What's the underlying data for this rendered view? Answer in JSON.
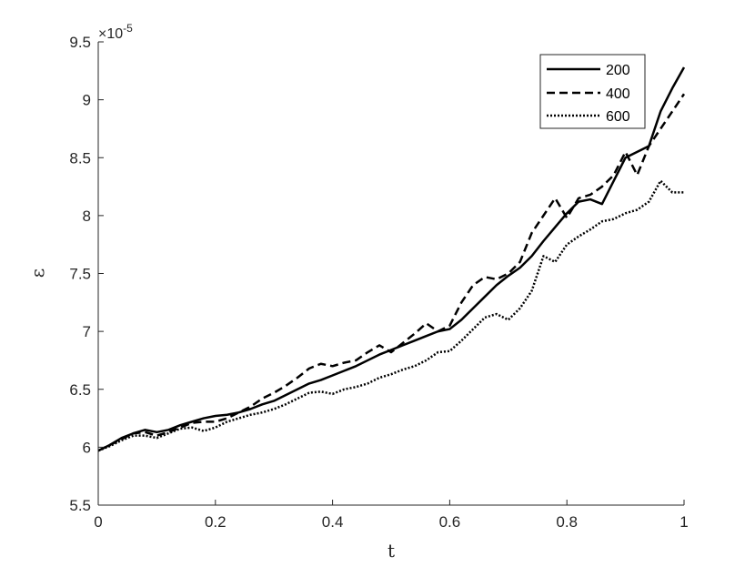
{
  "chart_data": {
    "type": "line",
    "xlabel": "t",
    "ylabel": "ε",
    "y_exponent_base": "×10",
    "y_exponent_power": "-5",
    "xlim": [
      0,
      1
    ],
    "ylim": [
      5.5,
      9.5
    ],
    "xticks": [
      0,
      0.2,
      0.4,
      0.6,
      0.8,
      1
    ],
    "xtick_labels": [
      "0",
      "0.2",
      "0.4",
      "0.6",
      "0.8",
      "1"
    ],
    "yticks": [
      5.5,
      6,
      6.5,
      7,
      7.5,
      8,
      8.5,
      9,
      9.5
    ],
    "ytick_labels": [
      "5.5",
      "6",
      "6.5",
      "7",
      "7.5",
      "8",
      "8.5",
      "9",
      "9.5"
    ],
    "grid": false,
    "legend_position": "top-right",
    "series": [
      {
        "name": "200",
        "style": "solid",
        "color": "#000000",
        "x": [
          0,
          0.02,
          0.04,
          0.06,
          0.08,
          0.1,
          0.12,
          0.14,
          0.16,
          0.18,
          0.2,
          0.22,
          0.24,
          0.26,
          0.28,
          0.3,
          0.32,
          0.34,
          0.36,
          0.38,
          0.4,
          0.42,
          0.44,
          0.46,
          0.48,
          0.5,
          0.52,
          0.54,
          0.56,
          0.58,
          0.6,
          0.62,
          0.64,
          0.66,
          0.68,
          0.7,
          0.72,
          0.74,
          0.76,
          0.78,
          0.8,
          0.82,
          0.84,
          0.86,
          0.88,
          0.9,
          0.92,
          0.94,
          0.96,
          0.98,
          1.0
        ],
        "y": [
          5.97,
          6.02,
          6.08,
          6.12,
          6.15,
          6.13,
          6.15,
          6.19,
          6.22,
          6.25,
          6.27,
          6.28,
          6.3,
          6.33,
          6.37,
          6.4,
          6.45,
          6.5,
          6.55,
          6.58,
          6.62,
          6.66,
          6.7,
          6.75,
          6.8,
          6.84,
          6.88,
          6.92,
          6.96,
          7.0,
          7.02,
          7.1,
          7.2,
          7.3,
          7.4,
          7.48,
          7.55,
          7.65,
          7.78,
          7.9,
          8.02,
          8.12,
          8.14,
          8.1,
          8.3,
          8.5,
          8.55,
          8.6,
          8.9,
          9.1,
          9.28
        ]
      },
      {
        "name": "400",
        "style": "dashed",
        "color": "#000000",
        "x": [
          0,
          0.02,
          0.04,
          0.06,
          0.08,
          0.1,
          0.12,
          0.14,
          0.16,
          0.18,
          0.2,
          0.22,
          0.24,
          0.26,
          0.28,
          0.3,
          0.32,
          0.34,
          0.36,
          0.38,
          0.4,
          0.42,
          0.44,
          0.46,
          0.48,
          0.5,
          0.52,
          0.54,
          0.56,
          0.58,
          0.6,
          0.62,
          0.64,
          0.66,
          0.68,
          0.7,
          0.72,
          0.74,
          0.76,
          0.78,
          0.8,
          0.82,
          0.84,
          0.86,
          0.88,
          0.9,
          0.92,
          0.94,
          0.96,
          0.98,
          1.0
        ],
        "y": [
          5.97,
          6.02,
          6.07,
          6.12,
          6.13,
          6.1,
          6.13,
          6.17,
          6.21,
          6.22,
          6.22,
          6.25,
          6.3,
          6.35,
          6.42,
          6.47,
          6.53,
          6.6,
          6.68,
          6.72,
          6.7,
          6.73,
          6.75,
          6.82,
          6.88,
          6.82,
          6.9,
          6.98,
          7.07,
          7.0,
          7.05,
          7.25,
          7.4,
          7.47,
          7.45,
          7.5,
          7.6,
          7.85,
          8.0,
          8.15,
          7.98,
          8.15,
          8.18,
          8.25,
          8.35,
          8.55,
          8.35,
          8.6,
          8.75,
          8.9,
          9.05
        ]
      },
      {
        "name": "600",
        "style": "dotted",
        "color": "#000000",
        "x": [
          0,
          0.02,
          0.04,
          0.06,
          0.08,
          0.1,
          0.12,
          0.14,
          0.16,
          0.18,
          0.2,
          0.22,
          0.24,
          0.26,
          0.28,
          0.3,
          0.32,
          0.34,
          0.36,
          0.38,
          0.4,
          0.42,
          0.44,
          0.46,
          0.48,
          0.5,
          0.52,
          0.54,
          0.56,
          0.58,
          0.6,
          0.62,
          0.64,
          0.66,
          0.68,
          0.7,
          0.72,
          0.74,
          0.76,
          0.78,
          0.8,
          0.82,
          0.84,
          0.86,
          0.88,
          0.9,
          0.92,
          0.94,
          0.96,
          0.98,
          1.0
        ],
        "y": [
          5.97,
          6.01,
          6.06,
          6.1,
          6.1,
          6.08,
          6.12,
          6.16,
          6.17,
          6.14,
          6.17,
          6.22,
          6.25,
          6.28,
          6.3,
          6.33,
          6.37,
          6.42,
          6.47,
          6.48,
          6.46,
          6.5,
          6.52,
          6.55,
          6.6,
          6.63,
          6.67,
          6.7,
          6.75,
          6.82,
          6.83,
          6.92,
          7.02,
          7.12,
          7.15,
          7.1,
          7.2,
          7.35,
          7.65,
          7.6,
          7.75,
          7.82,
          7.88,
          7.95,
          7.97,
          8.02,
          8.05,
          8.12,
          8.3,
          8.2,
          8.2
        ]
      }
    ]
  }
}
